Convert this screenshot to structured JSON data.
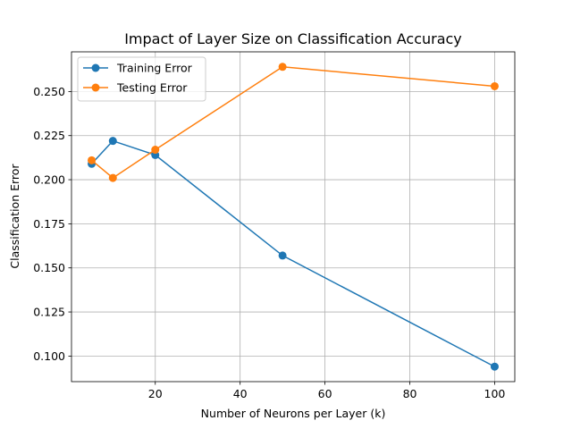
{
  "chart_data": {
    "type": "line",
    "title": "Impact of Layer Size on Classification Accuracy",
    "xlabel": "Number of Neurons per Layer (k)",
    "ylabel": "Classification Error",
    "xlim": [
      0.25,
      104.75
    ],
    "ylim": [
      0.0855,
      0.2725
    ],
    "xticks": [
      20,
      40,
      60,
      80,
      100
    ],
    "xtick_labels": [
      "20",
      "40",
      "60",
      "80",
      "100"
    ],
    "yticks": [
      0.1,
      0.125,
      0.15,
      0.175,
      0.2,
      0.225,
      0.25
    ],
    "ytick_labels": [
      "0.100",
      "0.125",
      "0.150",
      "0.175",
      "0.200",
      "0.225",
      "0.250"
    ],
    "grid": true,
    "legend_position": "top-left",
    "series": [
      {
        "name": "Training Error",
        "color": "#1f77b4",
        "marker": "circle",
        "x": [
          5,
          10,
          20,
          50,
          100
        ],
        "y": [
          0.209,
          0.222,
          0.214,
          0.157,
          0.094
        ]
      },
      {
        "name": "Testing Error",
        "color": "#ff7f0e",
        "marker": "circle",
        "x": [
          5,
          10,
          20,
          50,
          100
        ],
        "y": [
          0.211,
          0.201,
          0.217,
          0.264,
          0.253
        ]
      }
    ]
  }
}
